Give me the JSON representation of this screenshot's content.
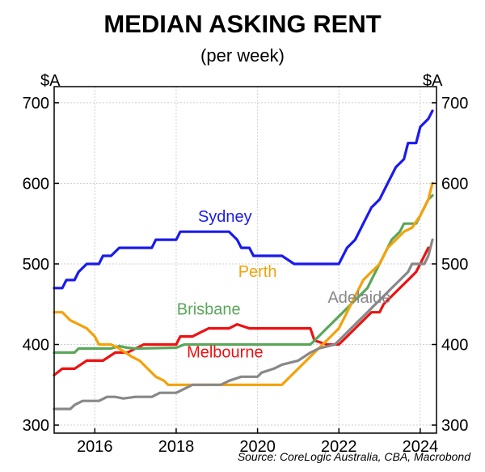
{
  "chart_data": {
    "type": "line",
    "title": "MEDIAN ASKING RENT",
    "subtitle": "(per week)",
    "y_unit_left": "$A",
    "y_unit_right": "$A",
    "ylim": [
      290,
      720
    ],
    "xlim": [
      2015.0,
      2024.4
    ],
    "y_ticks": [
      300,
      400,
      500,
      600,
      700
    ],
    "x_ticks": [
      2016,
      2018,
      2020,
      2022,
      2024
    ],
    "grid": true,
    "source": "Source: CoreLogic Australia, CBA, Macrobond",
    "series": [
      {
        "name": "Sydney",
        "color": "#1a1aee",
        "label_at": [
          2019.2,
          552
        ],
        "points": [
          [
            2015.0,
            470
          ],
          [
            2015.2,
            470
          ],
          [
            2015.3,
            480
          ],
          [
            2015.5,
            480
          ],
          [
            2015.6,
            490
          ],
          [
            2015.8,
            500
          ],
          [
            2016.1,
            500
          ],
          [
            2016.2,
            510
          ],
          [
            2016.4,
            510
          ],
          [
            2016.6,
            520
          ],
          [
            2017.4,
            520
          ],
          [
            2017.5,
            530
          ],
          [
            2018.0,
            530
          ],
          [
            2018.1,
            540
          ],
          [
            2019.3,
            540
          ],
          [
            2019.5,
            530
          ],
          [
            2019.6,
            520
          ],
          [
            2019.8,
            520
          ],
          [
            2019.9,
            510
          ],
          [
            2020.6,
            510
          ],
          [
            2020.9,
            500
          ],
          [
            2022.0,
            500
          ],
          [
            2022.2,
            520
          ],
          [
            2022.4,
            530
          ],
          [
            2022.6,
            550
          ],
          [
            2022.8,
            570
          ],
          [
            2023.0,
            580
          ],
          [
            2023.2,
            600
          ],
          [
            2023.4,
            620
          ],
          [
            2023.6,
            630
          ],
          [
            2023.7,
            650
          ],
          [
            2023.9,
            650
          ],
          [
            2024.0,
            670
          ],
          [
            2024.2,
            680
          ],
          [
            2024.3,
            690
          ]
        ]
      },
      {
        "name": "Melbourne",
        "color": "#ee1111",
        "label_at": [
          2019.2,
          384
        ],
        "points": [
          [
            2015.0,
            362
          ],
          [
            2015.2,
            370
          ],
          [
            2015.5,
            370
          ],
          [
            2015.8,
            380
          ],
          [
            2016.2,
            380
          ],
          [
            2016.5,
            390
          ],
          [
            2016.8,
            390
          ],
          [
            2017.2,
            400
          ],
          [
            2018.0,
            400
          ],
          [
            2018.1,
            410
          ],
          [
            2018.4,
            410
          ],
          [
            2018.6,
            415
          ],
          [
            2018.8,
            420
          ],
          [
            2019.3,
            420
          ],
          [
            2019.5,
            425
          ],
          [
            2019.8,
            420
          ],
          [
            2020.1,
            420
          ],
          [
            2020.3,
            420
          ],
          [
            2021.3,
            420
          ],
          [
            2021.4,
            405
          ],
          [
            2021.7,
            400
          ],
          [
            2022.0,
            400
          ],
          [
            2022.2,
            410
          ],
          [
            2022.4,
            420
          ],
          [
            2022.6,
            430
          ],
          [
            2022.8,
            440
          ],
          [
            2023.0,
            440
          ],
          [
            2023.1,
            450
          ],
          [
            2023.3,
            460
          ],
          [
            2023.5,
            470
          ],
          [
            2023.7,
            480
          ],
          [
            2023.9,
            490
          ],
          [
            2024.0,
            500
          ],
          [
            2024.1,
            510
          ],
          [
            2024.2,
            520
          ]
        ]
      },
      {
        "name": "Brisbane",
        "color": "#5aa65a",
        "label_at": [
          2018.8,
          437
        ],
        "points": [
          [
            2015.0,
            390
          ],
          [
            2015.5,
            390
          ],
          [
            2015.6,
            395
          ],
          [
            2016.4,
            395
          ],
          [
            2016.6,
            398
          ],
          [
            2016.8,
            396
          ],
          [
            2017.0,
            395
          ],
          [
            2018.0,
            396
          ],
          [
            2018.2,
            400
          ],
          [
            2021.3,
            400
          ],
          [
            2021.5,
            410
          ],
          [
            2021.7,
            420
          ],
          [
            2021.9,
            430
          ],
          [
            2022.1,
            440
          ],
          [
            2022.3,
            450
          ],
          [
            2022.5,
            460
          ],
          [
            2022.7,
            470
          ],
          [
            2022.9,
            490
          ],
          [
            2023.1,
            510
          ],
          [
            2023.3,
            530
          ],
          [
            2023.5,
            540
          ],
          [
            2023.6,
            550
          ],
          [
            2023.9,
            550
          ],
          [
            2024.0,
            560
          ],
          [
            2024.2,
            580
          ],
          [
            2024.3,
            585
          ]
        ]
      },
      {
        "name": "Perth",
        "color": "#f5a10a",
        "label_at": [
          2020.0,
          484
        ],
        "points": [
          [
            2015.0,
            440
          ],
          [
            2015.2,
            440
          ],
          [
            2015.4,
            430
          ],
          [
            2015.8,
            420
          ],
          [
            2016.0,
            410
          ],
          [
            2016.1,
            400
          ],
          [
            2016.4,
            400
          ],
          [
            2016.6,
            395
          ],
          [
            2016.9,
            385
          ],
          [
            2017.1,
            380
          ],
          [
            2017.3,
            370
          ],
          [
            2017.5,
            360
          ],
          [
            2017.7,
            355
          ],
          [
            2017.8,
            350
          ],
          [
            2020.6,
            350
          ],
          [
            2020.8,
            360
          ],
          [
            2021.0,
            370
          ],
          [
            2021.2,
            380
          ],
          [
            2021.4,
            390
          ],
          [
            2021.6,
            400
          ],
          [
            2021.8,
            410
          ],
          [
            2022.0,
            420
          ],
          [
            2022.2,
            440
          ],
          [
            2022.4,
            460
          ],
          [
            2022.6,
            480
          ],
          [
            2022.8,
            490
          ],
          [
            2023.0,
            500
          ],
          [
            2023.2,
            520
          ],
          [
            2023.4,
            530
          ],
          [
            2023.6,
            540
          ],
          [
            2023.8,
            545
          ],
          [
            2024.0,
            560
          ],
          [
            2024.2,
            580
          ],
          [
            2024.3,
            600
          ]
        ]
      },
      {
        "name": "Adelaide",
        "color": "#888888",
        "label_at": [
          2022.5,
          452
        ],
        "points": [
          [
            2015.0,
            320
          ],
          [
            2015.4,
            320
          ],
          [
            2015.5,
            325
          ],
          [
            2015.7,
            330
          ],
          [
            2016.1,
            330
          ],
          [
            2016.3,
            335
          ],
          [
            2016.5,
            335
          ],
          [
            2016.7,
            333
          ],
          [
            2017.0,
            335
          ],
          [
            2017.4,
            335
          ],
          [
            2017.6,
            340
          ],
          [
            2018.0,
            340
          ],
          [
            2018.2,
            345
          ],
          [
            2018.4,
            350
          ],
          [
            2019.1,
            350
          ],
          [
            2019.3,
            355
          ],
          [
            2019.6,
            360
          ],
          [
            2020.0,
            360
          ],
          [
            2020.1,
            365
          ],
          [
            2020.4,
            370
          ],
          [
            2020.6,
            375
          ],
          [
            2021.0,
            380
          ],
          [
            2021.3,
            390
          ],
          [
            2021.5,
            395
          ],
          [
            2021.9,
            400
          ],
          [
            2022.1,
            410
          ],
          [
            2022.3,
            420
          ],
          [
            2022.5,
            430
          ],
          [
            2022.7,
            440
          ],
          [
            2022.9,
            450
          ],
          [
            2023.1,
            460
          ],
          [
            2023.3,
            470
          ],
          [
            2023.5,
            480
          ],
          [
            2023.7,
            490
          ],
          [
            2023.8,
            500
          ],
          [
            2024.1,
            500
          ],
          [
            2024.2,
            510
          ],
          [
            2024.3,
            530
          ]
        ]
      }
    ]
  }
}
